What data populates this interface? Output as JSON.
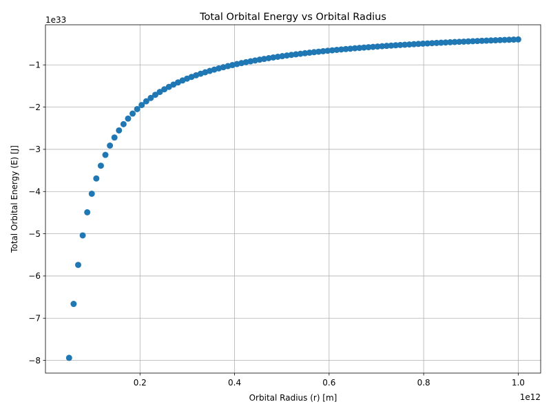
{
  "chart_data": {
    "type": "scatter",
    "title": "Total Orbital Energy vs Orbital Radius",
    "xlabel": "Orbital Radius (r) [m]",
    "ylabel": "Total Orbital Energy (E) [J]",
    "x_offset_text": "1e12",
    "y_offset_text": "1e33",
    "x_multiplier": 1000000000000.0,
    "y_multiplier": 1e+33,
    "xlim": [
      0.0,
      1.0475
    ],
    "ylim": [
      -8.3,
      -0.05
    ],
    "xticks": [
      0.2,
      0.4,
      0.6,
      0.8,
      1.0
    ],
    "xtick_labels": [
      "0.2",
      "0.4",
      "0.6",
      "0.8",
      "1.0"
    ],
    "yticks": [
      -8,
      -7,
      -6,
      -5,
      -4,
      -3,
      -2,
      -1
    ],
    "ytick_labels": [
      "−8",
      "−7",
      "−6",
      "−5",
      "−4",
      "−3",
      "−2",
      "−1"
    ],
    "grid": true,
    "series": [
      {
        "color": "#1f77b4",
        "marker": "circle",
        "x_start": 50000000000.0,
        "x_end": 1000000000000.0,
        "n_points": 100,
        "energy_constant": -3.97e+44,
        "note_values": "y = energy_constant / x for evenly spaced x from x_start to x_end"
      }
    ]
  }
}
